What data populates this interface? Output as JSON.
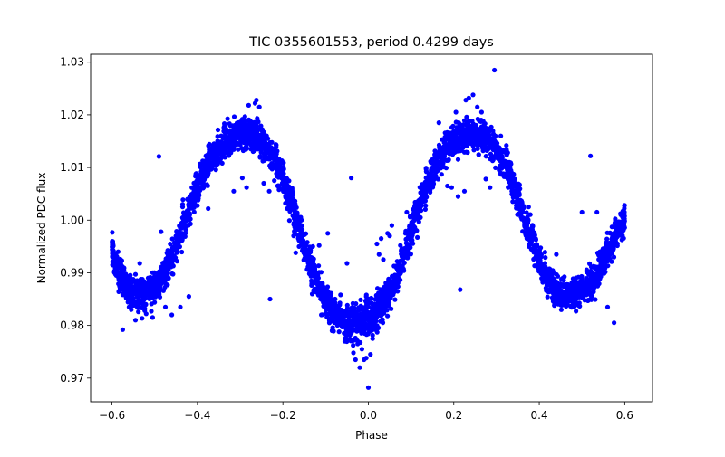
{
  "chart_data": {
    "type": "scatter",
    "title": "TIC 0355601553, period 0.4299 days",
    "xlabel": "Phase",
    "ylabel": "Normalized PDC flux",
    "xlim": [
      -0.65,
      0.665
    ],
    "ylim": [
      0.9655,
      1.0315
    ],
    "xticks": [
      -0.6,
      -0.4,
      -0.2,
      0.0,
      0.2,
      0.4,
      0.6
    ],
    "xtick_labels": [
      "−0.6",
      "−0.4",
      "−0.2",
      "0.0",
      "0.2",
      "0.4",
      "0.6"
    ],
    "yticks": [
      0.97,
      0.98,
      0.99,
      1.0,
      1.01,
      1.02,
      1.03
    ],
    "ytick_labels": [
      "0.97",
      "0.98",
      "0.99",
      "1.00",
      "1.01",
      "1.02",
      "1.03"
    ],
    "grid": false,
    "legend": "none",
    "marker_color": "#0000ff",
    "series": [
      {
        "x": [
          -0.6,
          -0.59,
          -0.58,
          -0.57,
          -0.56,
          -0.55,
          -0.54,
          -0.53,
          -0.52,
          -0.51,
          -0.5,
          -0.49,
          -0.48,
          -0.47,
          -0.46,
          -0.45,
          -0.44,
          -0.43,
          -0.42,
          -0.41,
          -0.4,
          -0.39,
          -0.38,
          -0.37,
          -0.36,
          -0.35,
          -0.34,
          -0.33,
          -0.32,
          -0.31,
          -0.3,
          -0.29,
          -0.28,
          -0.27,
          -0.26,
          -0.25,
          -0.24,
          -0.23,
          -0.22,
          -0.21,
          -0.2,
          -0.19,
          -0.18,
          -0.17,
          -0.16,
          -0.15,
          -0.14,
          -0.13,
          -0.12,
          -0.11,
          -0.1,
          -0.09,
          -0.08,
          -0.07,
          -0.06,
          -0.05,
          -0.04,
          -0.03,
          -0.02,
          -0.01,
          0.0,
          0.01,
          0.02,
          0.03,
          0.04,
          0.05,
          0.06,
          0.07,
          0.08,
          0.09,
          0.1,
          0.11,
          0.12,
          0.13,
          0.14,
          0.15,
          0.16,
          0.17,
          0.18,
          0.19,
          0.2,
          0.21,
          0.22,
          0.23,
          0.24,
          0.25,
          0.26,
          0.27,
          0.28,
          0.29,
          0.3,
          0.31,
          0.32,
          0.33,
          0.34,
          0.35,
          0.36,
          0.37,
          0.38,
          0.39,
          0.4,
          0.41,
          0.42,
          0.43,
          0.44,
          0.45,
          0.46,
          0.47,
          0.48,
          0.49,
          0.5,
          0.51,
          0.52,
          0.53,
          0.54,
          0.55,
          0.56,
          0.57,
          0.58,
          0.59,
          0.6
        ],
        "y": [
          0.9945,
          0.9915,
          0.9895,
          0.9878,
          0.9868,
          0.9863,
          0.986,
          0.9858,
          0.986,
          0.9865,
          0.9872,
          0.9882,
          0.9895,
          0.991,
          0.9928,
          0.9948,
          0.997,
          0.9995,
          1.002,
          1.0043,
          1.0063,
          1.0082,
          1.0099,
          1.0114,
          1.0126,
          1.0137,
          1.0146,
          1.0153,
          1.0158,
          1.0162,
          1.0164,
          1.0165,
          1.0164,
          1.0162,
          1.0158,
          1.0151,
          1.0142,
          1.013,
          1.0115,
          1.0097,
          1.0078,
          1.0055,
          1.0031,
          1.0006,
          0.998,
          0.9954,
          0.9928,
          0.9903,
          0.988,
          0.986,
          0.9844,
          0.9832,
          0.9822,
          0.9815,
          0.981,
          0.9807,
          0.9806,
          0.9806,
          0.9808,
          0.9811,
          0.9815,
          0.982,
          0.9828,
          0.9838,
          0.985,
          0.9865,
          0.9882,
          0.9902,
          0.9925,
          0.995,
          0.9976,
          1.0002,
          1.0027,
          1.005,
          1.0071,
          1.009,
          1.0107,
          1.0121,
          1.0133,
          1.0143,
          1.015,
          1.0155,
          1.0159,
          1.0161,
          1.0162,
          1.0161,
          1.0159,
          1.0155,
          1.015,
          1.0143,
          1.0133,
          1.0121,
          1.0106,
          1.0088,
          1.0068,
          1.0045,
          1.002,
          0.9995,
          0.997,
          0.9946,
          0.9924,
          0.9905,
          0.9889,
          0.9877,
          0.9868,
          0.9863,
          0.986,
          0.9859,
          0.986,
          0.9863,
          0.9868,
          0.9875,
          0.9884,
          0.9895,
          0.9908,
          0.9923,
          0.994,
          0.9957,
          0.9972,
          0.9985,
          0.9995
        ],
        "scatter_width": [
          0.0055,
          0.006,
          0.006,
          0.006,
          0.006,
          0.006,
          0.006,
          0.006,
          0.006,
          0.006,
          0.006,
          0.006,
          0.006,
          0.006,
          0.006,
          0.006,
          0.006,
          0.006,
          0.006,
          0.006,
          0.006,
          0.006,
          0.006,
          0.006,
          0.006,
          0.006,
          0.006,
          0.006,
          0.006,
          0.006,
          0.006,
          0.006,
          0.006,
          0.006,
          0.006,
          0.006,
          0.006,
          0.006,
          0.006,
          0.006,
          0.006,
          0.006,
          0.006,
          0.006,
          0.006,
          0.006,
          0.006,
          0.006,
          0.006,
          0.006,
          0.006,
          0.006,
          0.006,
          0.0065,
          0.007,
          0.0075,
          0.008,
          0.008,
          0.008,
          0.008,
          0.008,
          0.008,
          0.008,
          0.0075,
          0.007,
          0.0065,
          0.006,
          0.006,
          0.006,
          0.006,
          0.006,
          0.006,
          0.006,
          0.006,
          0.006,
          0.006,
          0.006,
          0.006,
          0.006,
          0.006,
          0.006,
          0.006,
          0.006,
          0.006,
          0.006,
          0.006,
          0.006,
          0.006,
          0.006,
          0.006,
          0.006,
          0.006,
          0.006,
          0.006,
          0.006,
          0.006,
          0.006,
          0.006,
          0.006,
          0.006,
          0.006,
          0.006,
          0.006,
          0.006,
          0.006,
          0.006,
          0.006,
          0.006,
          0.006,
          0.006,
          0.006,
          0.006,
          0.006,
          0.006,
          0.006,
          0.006,
          0.006,
          0.006,
          0.006,
          0.006,
          0.0065
        ]
      },
      {
        "x": [
          -0.59,
          -0.575,
          -0.56,
          -0.545,
          -0.535,
          -0.52,
          -0.505,
          -0.49,
          -0.485,
          -0.475,
          -0.46,
          -0.44,
          -0.42,
          -0.375,
          -0.315,
          -0.295,
          -0.285,
          -0.28,
          -0.275,
          -0.265,
          -0.262,
          -0.255,
          -0.245,
          -0.232,
          -0.23,
          -0.22,
          -0.205,
          -0.19,
          -0.17,
          -0.16,
          -0.14,
          -0.13,
          -0.115,
          -0.11,
          -0.1,
          -0.095,
          -0.085,
          -0.075,
          -0.065,
          -0.055,
          -0.05,
          -0.045,
          -0.04,
          -0.035,
          -0.03,
          -0.025,
          -0.02,
          -0.015,
          -0.01,
          -0.005,
          0.0,
          0.005,
          0.01,
          0.015,
          0.02,
          0.025,
          0.03,
          0.035,
          0.045,
          0.05,
          0.055,
          0.065,
          0.075,
          0.09,
          0.11,
          0.13,
          0.155,
          0.165,
          0.175,
          0.185,
          0.195,
          0.205,
          0.21,
          0.215,
          0.225,
          0.228,
          0.235,
          0.245,
          0.255,
          0.265,
          0.275,
          0.285,
          0.295,
          0.31,
          0.33,
          0.375,
          0.44,
          0.465,
          0.5,
          0.52,
          0.535,
          0.56,
          0.575
        ],
        "y": [
          0.9895,
          0.9792,
          0.9835,
          0.981,
          0.9918,
          0.9822,
          0.9815,
          1.0121,
          0.9978,
          0.9835,
          0.982,
          0.9835,
          0.9855,
          1.0022,
          1.0055,
          1.008,
          1.0062,
          1.0218,
          1.0135,
          1.0222,
          1.0228,
          1.0215,
          1.007,
          1.0055,
          0.985,
          1.0075,
          1.0095,
          1.0022,
          0.9938,
          0.9965,
          0.993,
          0.995,
          0.9952,
          0.982,
          0.986,
          0.9975,
          0.979,
          0.9835,
          0.9858,
          0.977,
          0.9918,
          0.9825,
          1.008,
          0.9748,
          0.9735,
          0.9765,
          0.972,
          0.9755,
          0.9735,
          0.9738,
          0.9682,
          0.9745,
          0.9775,
          0.9825,
          0.9955,
          0.9935,
          0.9965,
          0.9925,
          0.9975,
          0.997,
          0.999,
          0.9895,
          0.9952,
          1.0015,
          1.003,
          1.006,
          1.0095,
          1.0185,
          1.0108,
          1.0065,
          1.0062,
          1.0205,
          1.0045,
          0.9868,
          1.0055,
          1.0228,
          1.0232,
          1.0238,
          1.0215,
          1.0205,
          1.0078,
          1.0062,
          1.0285,
          1.016,
          1.011,
          1.0025,
          0.9935,
          0.9842,
          1.0015,
          1.0122,
          1.0015,
          0.9835,
          0.9805
        ]
      }
    ]
  }
}
